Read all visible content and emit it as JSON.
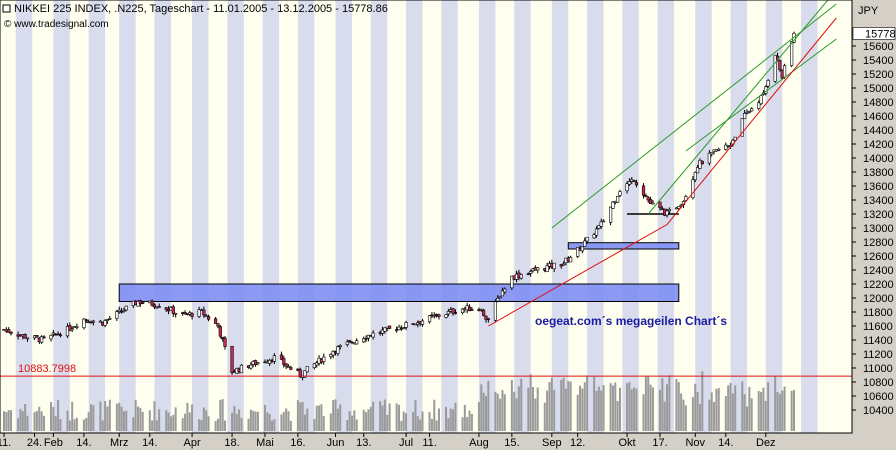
{
  "header": {
    "title": "NIKKEI 225 INDEX, .N225, Tageschart - 11.01.2005 - 13.12.2005 - 15778.86",
    "source": "© www.tradesignal.com",
    "currency": "JPY"
  },
  "annotation": "oegeat.com´s megageilen Chart´s",
  "colors": {
    "plot_bg": "#fffff0",
    "stripe": "#d8dcec",
    "candle_up": "#ffffff",
    "candle_down": "#c8285a",
    "volume": "#9a9a9a",
    "zone_fill": "#7f8ff4",
    "green_line": "#2a9a2a",
    "red_line": "#e01010",
    "ref_line": "#e01010"
  },
  "chart_data": {
    "type": "candlestick",
    "title": "NIKKEI 225 INDEX, .N225, Tageschart - 11.01.2005 - 13.12.2005 - 15778.86",
    "ylabel": "JPY",
    "ylim": [
      10350,
      16000
    ],
    "y_ticks": [
      10400,
      10600,
      10800,
      11000,
      11200,
      11400,
      11600,
      11800,
      12000,
      12200,
      12400,
      12600,
      12800,
      13000,
      13200,
      13400,
      13600,
      13800,
      14000,
      14200,
      14400,
      14600,
      14800,
      15000,
      15200,
      15400,
      15600
    ],
    "last_value": 15778.86,
    "last_label": "15778.",
    "x_start": "2005-01-11",
    "x_end": "2005-12-13",
    "x_ticks": [
      {
        "label": "11.",
        "date": "2005-01-11"
      },
      {
        "label": "24.",
        "date": "2005-01-24"
      },
      {
        "label": "Feb",
        "date": "2005-02-01"
      },
      {
        "label": "14.",
        "date": "2005-02-14"
      },
      {
        "label": "Mrz",
        "date": "2005-03-01"
      },
      {
        "label": "14.",
        "date": "2005-03-14"
      },
      {
        "label": "Apr",
        "date": "2005-04-01"
      },
      {
        "label": "18.",
        "date": "2005-04-18"
      },
      {
        "label": "Mai",
        "date": "2005-05-02"
      },
      {
        "label": "16.",
        "date": "2005-05-16"
      },
      {
        "label": "Jun",
        "date": "2005-06-01"
      },
      {
        "label": "13.",
        "date": "2005-06-13"
      },
      {
        "label": "Jul",
        "date": "2005-07-01"
      },
      {
        "label": "11.",
        "date": "2005-07-11"
      },
      {
        "label": "Aug",
        "date": "2005-08-01"
      },
      {
        "label": "15.",
        "date": "2005-08-15"
      },
      {
        "label": "Sep",
        "date": "2005-09-01"
      },
      {
        "label": "12.",
        "date": "2005-09-12"
      },
      {
        "label": "Okt",
        "date": "2005-10-03"
      },
      {
        "label": "17.",
        "date": "2005-10-17"
      },
      {
        "label": "Nov",
        "date": "2005-11-01"
      },
      {
        "label": "14.",
        "date": "2005-11-14"
      },
      {
        "label": "Dez",
        "date": "2005-12-01"
      }
    ],
    "reference_line": {
      "value": 10883.7998,
      "label": "10883.7998"
    },
    "zones": [
      {
        "date_start": "2005-03-01",
        "date_end": "2005-10-25",
        "low": 11950,
        "high": 12200
      },
      {
        "date_start": "2005-09-08",
        "date_end": "2005-10-25",
        "low": 12700,
        "high": 12790
      }
    ],
    "support_line": {
      "date_start": "2005-10-03",
      "date_end": "2005-10-25",
      "value": 13200
    },
    "trendlines": [
      {
        "color": "green",
        "points": [
          {
            "date": "2005-09-01",
            "value": 13000
          },
          {
            "date": "2005-12-31",
            "value": 16200
          }
        ]
      },
      {
        "color": "green",
        "points": [
          {
            "date": "2005-10-12",
            "value": 13200
          },
          {
            "date": "2005-12-31",
            "value": 16400
          }
        ]
      },
      {
        "color": "green",
        "points": [
          {
            "date": "2005-10-28",
            "value": 14100
          },
          {
            "date": "2005-12-31",
            "value": 15700
          }
        ]
      },
      {
        "color": "red",
        "points": [
          {
            "date": "2005-08-05",
            "value": 11600
          },
          {
            "date": "2005-10-20",
            "value": 13050
          },
          {
            "date": "2005-12-31",
            "value": 16000
          }
        ]
      }
    ],
    "price_path": [
      {
        "date": "2005-01-11",
        "value": 11550
      },
      {
        "date": "2005-01-20",
        "value": 11450
      },
      {
        "date": "2005-01-28",
        "value": 11400
      },
      {
        "date": "2005-02-07",
        "value": 11550
      },
      {
        "date": "2005-02-14",
        "value": 11700
      },
      {
        "date": "2005-02-22",
        "value": 11650
      },
      {
        "date": "2005-03-04",
        "value": 11850
      },
      {
        "date": "2005-03-09",
        "value": 11950
      },
      {
        "date": "2005-03-18",
        "value": 11900
      },
      {
        "date": "2005-03-28",
        "value": 11750
      },
      {
        "date": "2005-04-05",
        "value": 11800
      },
      {
        "date": "2005-04-12",
        "value": 11600
      },
      {
        "date": "2005-04-18",
        "value": 10950
      },
      {
        "date": "2005-04-26",
        "value": 11050
      },
      {
        "date": "2005-05-06",
        "value": 11150
      },
      {
        "date": "2005-05-17",
        "value": 10900
      },
      {
        "date": "2005-05-31",
        "value": 11250
      },
      {
        "date": "2005-06-13",
        "value": 11450
      },
      {
        "date": "2005-06-24",
        "value": 11550
      },
      {
        "date": "2005-07-05",
        "value": 11650
      },
      {
        "date": "2005-07-15",
        "value": 11750
      },
      {
        "date": "2005-07-25",
        "value": 11850
      },
      {
        "date": "2005-08-01",
        "value": 11850
      },
      {
        "date": "2005-08-05",
        "value": 11700
      },
      {
        "date": "2005-08-10",
        "value": 12050
      },
      {
        "date": "2005-08-15",
        "value": 12300
      },
      {
        "date": "2005-08-25",
        "value": 12400
      },
      {
        "date": "2005-09-06",
        "value": 12500
      },
      {
        "date": "2005-09-14",
        "value": 12750
      },
      {
        "date": "2005-09-22",
        "value": 13050
      },
      {
        "date": "2005-09-30",
        "value": 13550
      },
      {
        "date": "2005-10-06",
        "value": 13700
      },
      {
        "date": "2005-10-13",
        "value": 13350
      },
      {
        "date": "2005-10-20",
        "value": 13200
      },
      {
        "date": "2005-10-27",
        "value": 13400
      },
      {
        "date": "2005-11-02",
        "value": 13900
      },
      {
        "date": "2005-11-10",
        "value": 14100
      },
      {
        "date": "2005-11-16",
        "value": 14200
      },
      {
        "date": "2005-11-22",
        "value": 14600
      },
      {
        "date": "2005-11-30",
        "value": 14900
      },
      {
        "date": "2005-12-05",
        "value": 15500
      },
      {
        "date": "2005-12-08",
        "value": 15150
      },
      {
        "date": "2005-12-13",
        "value": 15778.86
      }
    ]
  }
}
